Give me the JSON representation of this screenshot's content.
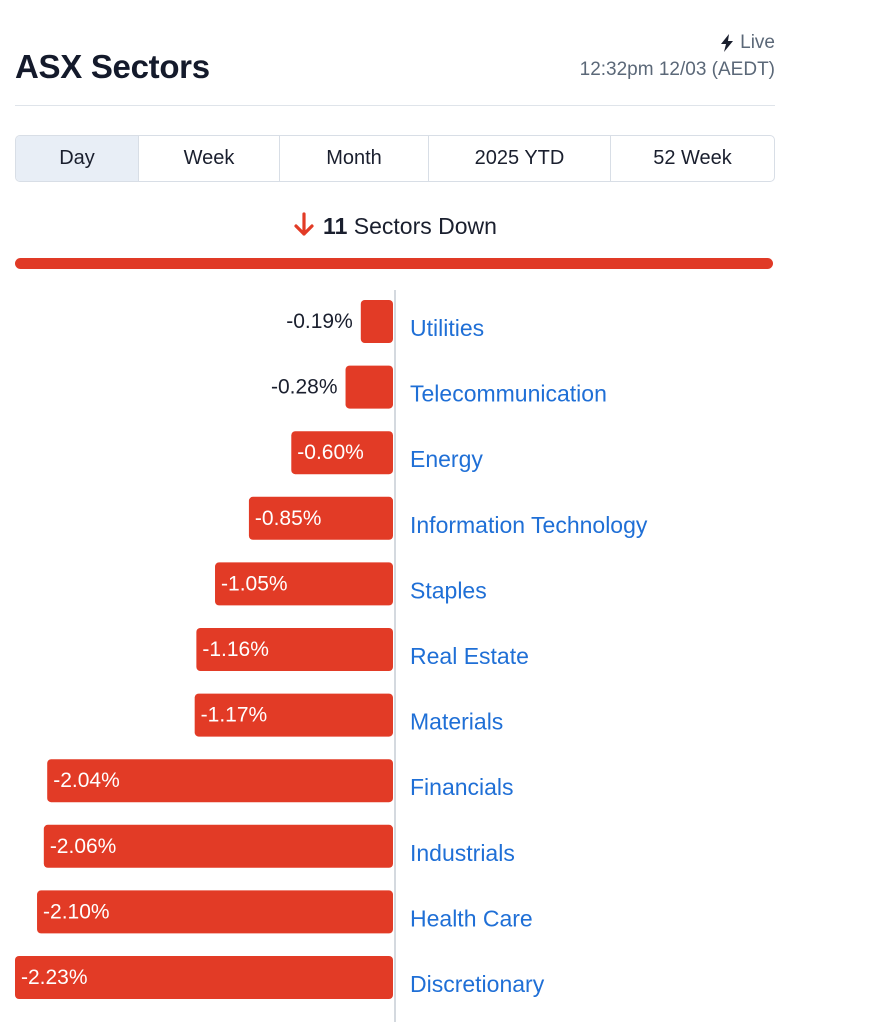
{
  "header": {
    "title": "ASX Sectors",
    "live_label": "Live",
    "timestamp": "12:32pm 12/03 (AEDT)"
  },
  "tabs": [
    {
      "label": "Day",
      "active": true
    },
    {
      "label": "Week",
      "active": false
    },
    {
      "label": "Month",
      "active": false
    },
    {
      "label": "2025 YTD",
      "active": false
    },
    {
      "label": "52 Week",
      "active": false
    }
  ],
  "summary": {
    "count": "11",
    "text": "Sectors Down",
    "direction_icon": "arrow-down-icon",
    "down_fraction": 1.0
  },
  "colors": {
    "negative": "#e23b26",
    "link": "#1f6fd6"
  },
  "chart_data": {
    "type": "bar",
    "orientation": "horizontal",
    "categories": [
      "Utilities",
      "Telecommunication",
      "Energy",
      "Information Technology",
      "Staples",
      "Real Estate",
      "Materials",
      "Financials",
      "Industrials",
      "Health Care",
      "Discretionary"
    ],
    "values": [
      -0.19,
      -0.28,
      -0.6,
      -0.85,
      -1.05,
      -1.16,
      -1.17,
      -2.04,
      -2.06,
      -2.1,
      -2.23
    ],
    "value_labels": [
      "-0.19%",
      "-0.28%",
      "-0.60%",
      "-0.85%",
      "-1.05%",
      "-1.16%",
      "-1.17%",
      "-2.04%",
      "-2.06%",
      "-2.10%",
      "-2.23%"
    ]
  }
}
